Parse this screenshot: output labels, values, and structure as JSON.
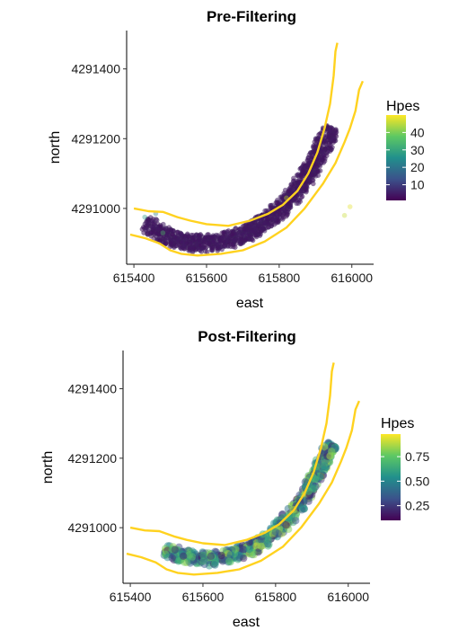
{
  "chart_data": [
    {
      "type": "scatter",
      "title": "Pre-Filtering",
      "xlabel": "east",
      "ylabel": "north",
      "xlim": [
        615380,
        616060
      ],
      "ylim": [
        4290840,
        4291510
      ],
      "x_ticks": [
        615400,
        615600,
        615800,
        616000
      ],
      "x_tick_labels": [
        "615400",
        "615600",
        "615800",
        "616000"
      ],
      "y_ticks": [
        4291000,
        4291200,
        4291400
      ],
      "y_tick_labels": [
        "4291000",
        "4291200",
        "4291400"
      ],
      "grid": false,
      "point_alpha": 0.2,
      "legend": {
        "title": "Hpes",
        "position": "right",
        "colorscale": "viridis",
        "range": [
          1,
          50
        ],
        "ticks": [
          10,
          20,
          30,
          40
        ],
        "tick_labels": [
          "10",
          "20",
          "30",
          "40"
        ]
      },
      "series": [
        {
          "kind": "points",
          "center_path": [
            [
              615430,
              4290955
            ],
            [
              615500,
              4290915
            ],
            [
              615560,
              4290900
            ],
            [
              615620,
              4290900
            ],
            [
              615680,
              4290915
            ],
            [
              615740,
              4290945
            ],
            [
              615790,
              4290985
            ],
            [
              615840,
              4291040
            ],
            [
              615880,
              4291100
            ],
            [
              615910,
              4291160
            ],
            [
              615945,
              4291235
            ]
          ],
          "band_halfwidth": 28,
          "core_hpes": 3,
          "outliers": [
            {
              "x": 615460,
              "y": 4290985,
              "hpes": 22
            },
            {
              "x": 615430,
              "y": 4290975,
              "hpes": 28
            },
            {
              "x": 615820,
              "y": 4291030,
              "hpes": 45
            },
            {
              "x": 615995,
              "y": 4291005,
              "hpes": 48
            },
            {
              "x": 615980,
              "y": 4290980,
              "hpes": 46
            },
            {
              "x": 615480,
              "y": 4290930,
              "hpes": 35
            }
          ]
        },
        {
          "kind": "boundary",
          "color": "#FFD21F",
          "points": [
            [
              615400,
              4291000
            ],
            [
              615440,
              4290992
            ],
            [
              615480,
              4290990
            ],
            [
              615520,
              4290975
            ],
            [
              615555,
              4290965
            ],
            [
              615600,
              4290955
            ],
            [
              615660,
              4290950
            ],
            [
              615720,
              4290965
            ],
            [
              615770,
              4290985
            ],
            [
              615810,
              4291010
            ],
            [
              615850,
              4291050
            ],
            [
              615880,
              4291100
            ],
            [
              615905,
              4291160
            ],
            [
              615925,
              4291230
            ],
            [
              615940,
              4291300
            ],
            [
              615950,
              4291380
            ],
            [
              615955,
              4291450
            ],
            [
              615960,
              4291475
            ]
          ]
        },
        {
          "kind": "boundary",
          "color": "#FFD21F",
          "points": [
            [
              615390,
              4290925
            ],
            [
              615430,
              4290915
            ],
            [
              615470,
              4290900
            ],
            [
              615500,
              4290880
            ],
            [
              615530,
              4290870
            ],
            [
              615575,
              4290865
            ],
            [
              615640,
              4290870
            ],
            [
              615700,
              4290880
            ],
            [
              615760,
              4290905
            ],
            [
              615820,
              4290945
            ],
            [
              615870,
              4291000
            ],
            [
              615920,
              4291070
            ],
            [
              615955,
              4291130
            ],
            [
              615980,
              4291190
            ],
            [
              615995,
              4291230
            ],
            [
              616010,
              4291280
            ],
            [
              616020,
              4291340
            ],
            [
              616030,
              4291365
            ]
          ]
        }
      ]
    },
    {
      "type": "scatter",
      "title": "Post-Filtering",
      "xlabel": "east",
      "ylabel": "north",
      "xlim": [
        615380,
        616060
      ],
      "ylim": [
        4290840,
        4291510
      ],
      "x_ticks": [
        615400,
        615600,
        615800,
        616000
      ],
      "x_tick_labels": [
        "615400",
        "615600",
        "615800",
        "616000"
      ],
      "y_ticks": [
        4291000,
        4291200,
        4291400
      ],
      "y_tick_labels": [
        "4291000",
        "4291200",
        "4291400"
      ],
      "grid": false,
      "point_alpha": 0.5,
      "legend": {
        "title": "Hpes",
        "position": "right",
        "colorscale": "viridis",
        "range": [
          0.1,
          0.98
        ],
        "ticks": [
          0.25,
          0.5,
          0.75
        ],
        "tick_labels": [
          "0.25",
          "0.50",
          "0.75"
        ]
      },
      "series": [
        {
          "kind": "points",
          "center_path": [
            [
              615495,
              4290935
            ],
            [
              615540,
              4290920
            ],
            [
              615600,
              4290910
            ],
            [
              615660,
              4290915
            ],
            [
              615720,
              4290935
            ],
            [
              615780,
              4290970
            ],
            [
              615830,
              4291020
            ],
            [
              615870,
              4291075
            ],
            [
              615905,
              4291140
            ],
            [
              615935,
              4291200
            ],
            [
              615955,
              4291240
            ]
          ],
          "band_halfwidth": 22,
          "hpes_range": [
            0.15,
            0.9
          ]
        },
        {
          "kind": "boundary",
          "color": "#FFD21F",
          "points": [
            [
              615400,
              4291000
            ],
            [
              615440,
              4290992
            ],
            [
              615480,
              4290990
            ],
            [
              615520,
              4290975
            ],
            [
              615555,
              4290965
            ],
            [
              615600,
              4290955
            ],
            [
              615660,
              4290950
            ],
            [
              615720,
              4290965
            ],
            [
              615770,
              4290985
            ],
            [
              615810,
              4291010
            ],
            [
              615850,
              4291050
            ],
            [
              615880,
              4291100
            ],
            [
              615905,
              4291160
            ],
            [
              615925,
              4291230
            ],
            [
              615940,
              4291300
            ],
            [
              615950,
              4291380
            ],
            [
              615955,
              4291450
            ],
            [
              615960,
              4291475
            ]
          ]
        },
        {
          "kind": "boundary",
          "color": "#FFD21F",
          "points": [
            [
              615390,
              4290925
            ],
            [
              615430,
              4290915
            ],
            [
              615470,
              4290900
            ],
            [
              615500,
              4290880
            ],
            [
              615530,
              4290870
            ],
            [
              615575,
              4290865
            ],
            [
              615640,
              4290870
            ],
            [
              615700,
              4290880
            ],
            [
              615760,
              4290905
            ],
            [
              615820,
              4290945
            ],
            [
              615870,
              4291000
            ],
            [
              615920,
              4291070
            ],
            [
              615955,
              4291130
            ],
            [
              615980,
              4291190
            ],
            [
              615995,
              4291230
            ],
            [
              616010,
              4291280
            ],
            [
              616020,
              4291340
            ],
            [
              616030,
              4291365
            ]
          ]
        }
      ]
    }
  ]
}
